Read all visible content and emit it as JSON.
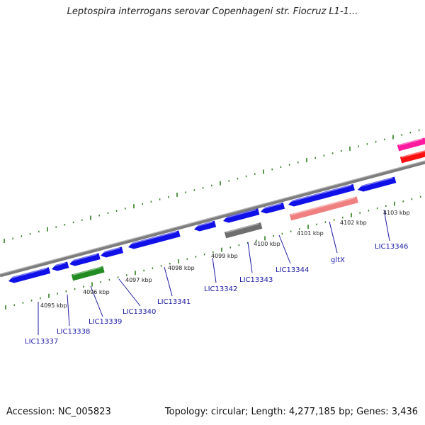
{
  "title": "Leptospira interrogans serovar Copenhageni str. Fiocruz L1-1...",
  "footer": {
    "accession": "Accession: NC_005823",
    "summary": "Topology: circular; Length: 4,277,185 bp; Genes: 3,436"
  },
  "colors": {
    "forward_gene": "#1010e8",
    "reverse_gene_other": "#ff1aa0",
    "rrna": "#ff1111",
    "trna": "#228b22",
    "pseudo": "#6e6e6e",
    "highlight": "#f08080",
    "backbone": "#8a8a8a",
    "ticks": "#2e7d1c",
    "label": "#1a1aa6"
  },
  "scale_labels": [
    "4095 kbp",
    "4096 kbp",
    "4097 kbp",
    "4098 kbp",
    "4099 kbp",
    "4100 kbp",
    "4101 kbp",
    "4102 kbp",
    "4103 kbp"
  ],
  "gene_labels": [
    "LIC13337",
    "LIC13338",
    "LIC13339",
    "LIC13340",
    "LIC13341",
    "LIC13342",
    "LIC13343",
    "LIC13344",
    "gltX",
    "LIC13346"
  ]
}
